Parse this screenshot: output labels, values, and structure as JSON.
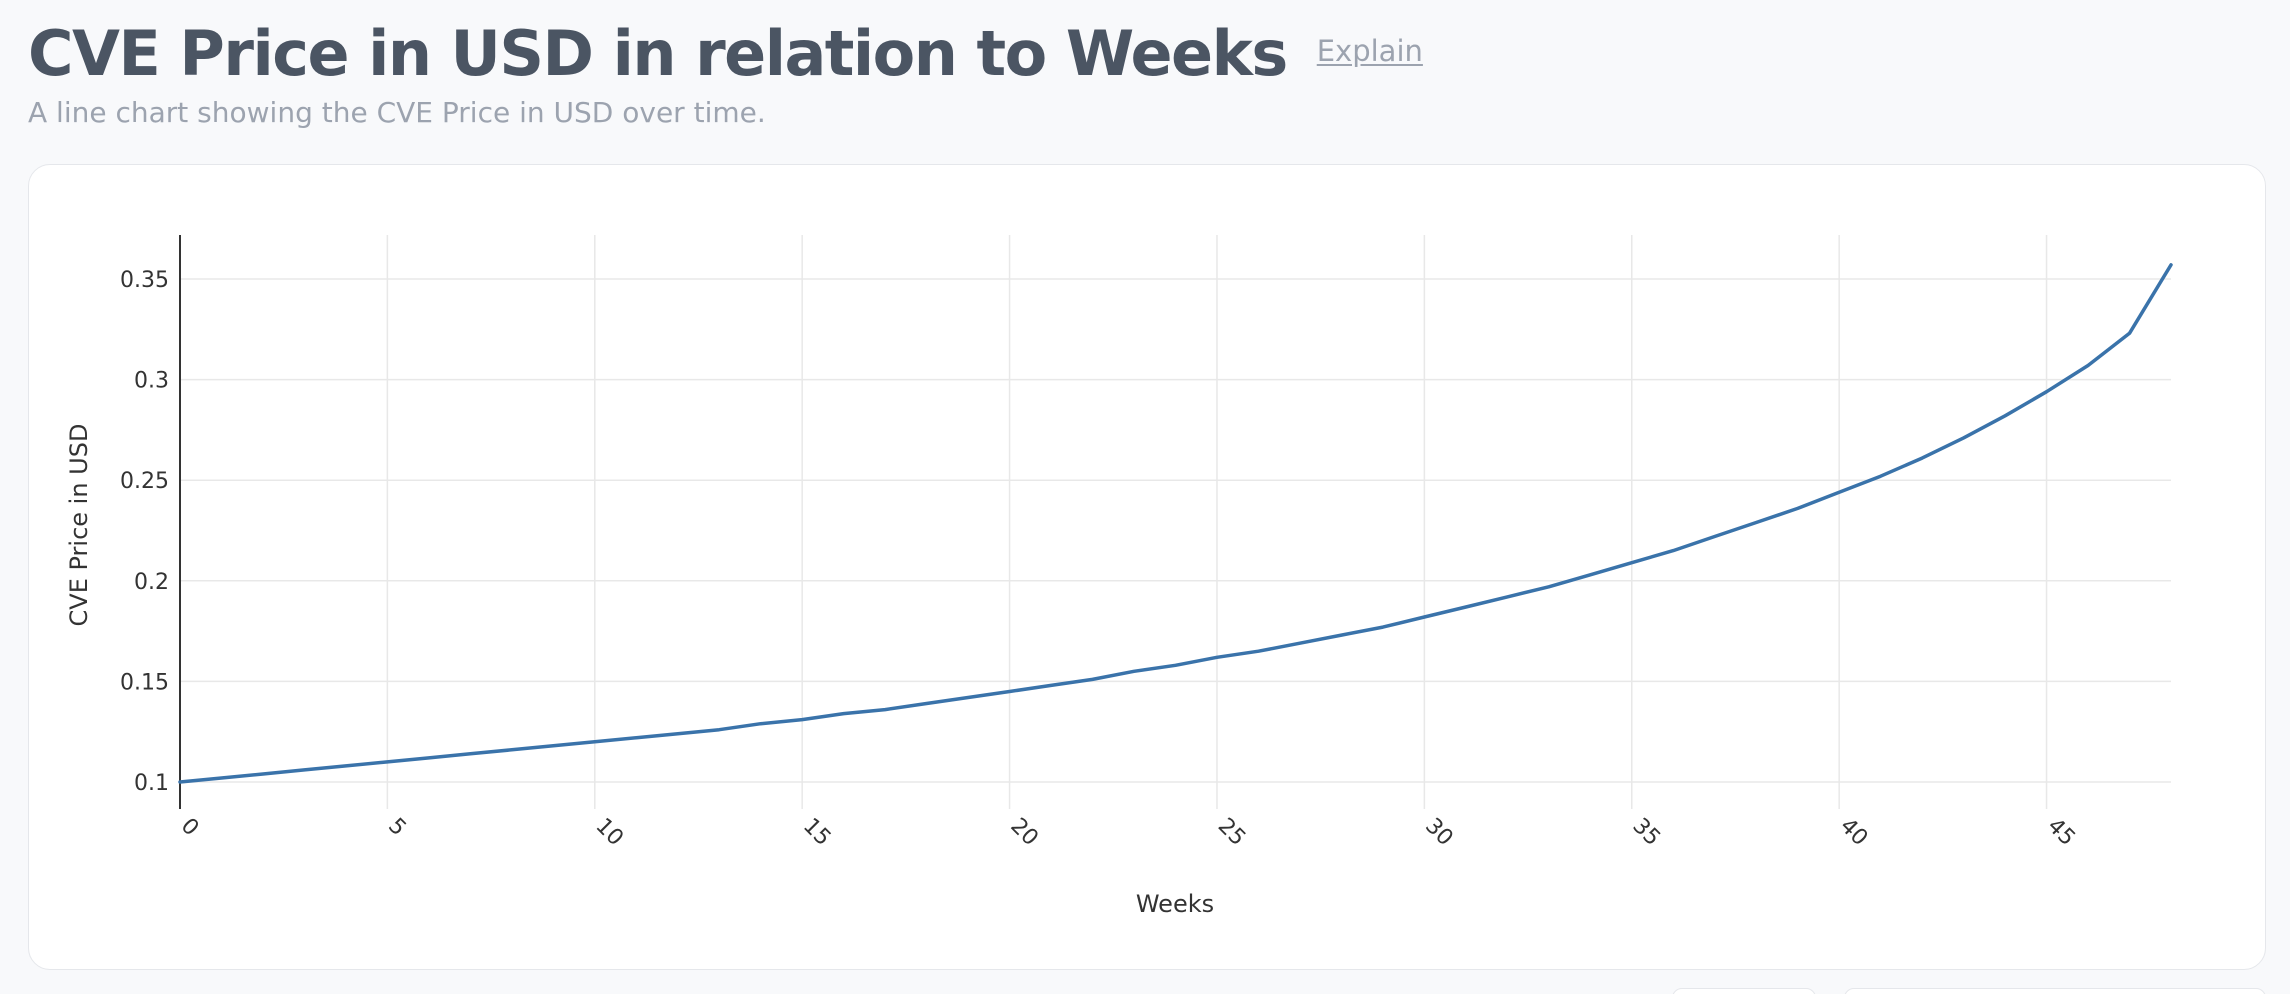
{
  "header": {
    "title": "CVE Price in USD in relation to Weeks",
    "explain_label": "Explain",
    "subtitle": "A line chart showing the CVE Price in USD over time."
  },
  "colors": {
    "line": "#3a73aa",
    "grid": "#e8e8e8",
    "axis": "#333333",
    "title": "#4b5563",
    "muted": "#9ca3af"
  },
  "chart_data": {
    "type": "line",
    "xlabel": "Weeks",
    "ylabel": "CVE Price in USD",
    "xlim": [
      0,
      48
    ],
    "ylim": [
      0.1,
      0.37
    ],
    "xticks": [
      0,
      5,
      10,
      15,
      20,
      25,
      30,
      35,
      40,
      45
    ],
    "yticks": [
      0.1,
      0.15,
      0.2,
      0.25,
      0.3,
      0.35
    ],
    "xtick_labels": [
      "0",
      "5",
      "10",
      "15",
      "20",
      "25",
      "30",
      "35",
      "40",
      "45"
    ],
    "ytick_labels": [
      "0.1",
      "0.15",
      "0.2",
      "0.25",
      "0.3",
      "0.35"
    ],
    "grid": true,
    "series": [
      {
        "x": [
          0,
          1,
          2,
          3,
          4,
          5,
          6,
          7,
          8,
          9,
          10,
          11,
          12,
          13,
          14,
          15,
          16,
          17,
          18,
          19,
          20,
          21,
          22,
          23,
          24,
          25,
          26,
          27,
          28,
          29,
          30,
          31,
          32,
          33,
          34,
          35,
          36,
          37,
          38,
          39,
          40,
          41,
          42,
          43,
          44,
          45,
          46,
          47,
          48
        ],
        "values": [
          0.1,
          0.102,
          0.104,
          0.106,
          0.108,
          0.11,
          0.112,
          0.114,
          0.116,
          0.118,
          0.12,
          0.122,
          0.124,
          0.126,
          0.129,
          0.131,
          0.134,
          0.136,
          0.139,
          0.142,
          0.145,
          0.148,
          0.151,
          0.155,
          0.158,
          0.162,
          0.165,
          0.169,
          0.173,
          0.177,
          0.182,
          0.187,
          0.192,
          0.197,
          0.203,
          0.209,
          0.215,
          0.222,
          0.229,
          0.236,
          0.244,
          0.252,
          0.261,
          0.271,
          0.282,
          0.294,
          0.307,
          0.323,
          0.357
        ]
      }
    ]
  }
}
